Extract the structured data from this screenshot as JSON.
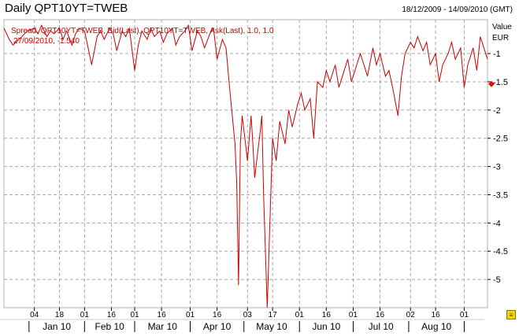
{
  "header": {
    "title": "Daily QPT10YT=TWEB",
    "date_range": "18/12/2009 - 14/09/2010 (GMT)"
  },
  "chart_data": {
    "type": "line",
    "legend": {
      "line1": "Spread, QPT10YT=TWEB, Bid(Last), QPT10YT=TWEB, Ask(Last),  1.0, 1.0",
      "line2": "27/09/2010, -1.540"
    },
    "y_axis": {
      "title": "Value",
      "unit": "EUR",
      "ticks": [
        -1,
        -1.5,
        -2,
        -2.5,
        -3,
        -3.5,
        -4,
        -4.5,
        -5
      ],
      "range": [
        -5.5,
        -0.4
      ],
      "side": "right"
    },
    "x_axis": {
      "day_ticks": [
        "04",
        "18",
        "01",
        "16",
        "01",
        "16",
        "01",
        "16",
        "03",
        "17",
        "01",
        "16",
        "01",
        "16",
        "02",
        "16",
        "01"
      ],
      "month_labels": [
        "Jan 10",
        "Feb 10",
        "Mar 10",
        "Apr 10",
        "May 10",
        "Jun 10",
        "Jul 10",
        "Aug 10"
      ]
    },
    "current_value_marker": -1.54,
    "line_color": "#cc0000",
    "grid": true,
    "series": [
      {
        "x": [
          "2009-12-18",
          "2009-12-21",
          "2009-12-23",
          "2009-12-28",
          "2009-12-31",
          "2010-01-04",
          "2010-01-06",
          "2010-01-08",
          "2010-01-11",
          "2010-01-13",
          "2010-01-15",
          "2010-01-18",
          "2010-01-20",
          "2010-01-22",
          "2010-01-25",
          "2010-01-27",
          "2010-01-29",
          "2010-02-01",
          "2010-02-03",
          "2010-02-05",
          "2010-02-08",
          "2010-02-10",
          "2010-02-12",
          "2010-02-15",
          "2010-02-17",
          "2010-02-19",
          "2010-02-22",
          "2010-02-24",
          "2010-02-26",
          "2010-03-01",
          "2010-03-03",
          "2010-03-05",
          "2010-03-08",
          "2010-03-10",
          "2010-03-12",
          "2010-03-15",
          "2010-03-17",
          "2010-03-19",
          "2010-03-22",
          "2010-03-24",
          "2010-03-26",
          "2010-03-29",
          "2010-03-31",
          "2010-04-02",
          "2010-04-05",
          "2010-04-07",
          "2010-04-09",
          "2010-04-12",
          "2010-04-14",
          "2010-04-16",
          "2010-04-19",
          "2010-04-21",
          "2010-04-23",
          "2010-04-26",
          "2010-04-27",
          "2010-04-28",
          "2010-04-29",
          "2010-04-30",
          "2010-05-03",
          "2010-05-04",
          "2010-05-05",
          "2010-05-06",
          "2010-05-07",
          "2010-05-10",
          "2010-05-11",
          "2010-05-12",
          "2010-05-14",
          "2010-05-17",
          "2010-05-19",
          "2010-05-21",
          "2010-05-24",
          "2010-05-26",
          "2010-05-28",
          "2010-05-31",
          "2010-06-02",
          "2010-06-04",
          "2010-06-07",
          "2010-06-09",
          "2010-06-11",
          "2010-06-14",
          "2010-06-16",
          "2010-06-18",
          "2010-06-21",
          "2010-06-23",
          "2010-06-25",
          "2010-06-28",
          "2010-06-30",
          "2010-07-02",
          "2010-07-05",
          "2010-07-07",
          "2010-07-09",
          "2010-07-12",
          "2010-07-14",
          "2010-07-16",
          "2010-07-19",
          "2010-07-21",
          "2010-07-23",
          "2010-07-26",
          "2010-07-28",
          "2010-07-30",
          "2010-08-02",
          "2010-08-04",
          "2010-08-06",
          "2010-08-09",
          "2010-08-11",
          "2010-08-13",
          "2010-08-16",
          "2010-08-18",
          "2010-08-20",
          "2010-08-23",
          "2010-08-25",
          "2010-08-27",
          "2010-08-30",
          "2010-09-01",
          "2010-09-03",
          "2010-09-06",
          "2010-09-08",
          "2010-09-10",
          "2010-09-14"
        ],
        "y": [
          -0.55,
          -0.75,
          -0.85,
          -0.7,
          -0.6,
          -0.55,
          -0.65,
          -0.5,
          -0.7,
          -0.6,
          -0.65,
          -0.55,
          -0.75,
          -0.6,
          -0.85,
          -0.65,
          -0.55,
          -0.6,
          -0.9,
          -1.2,
          -0.7,
          -0.6,
          -0.75,
          -0.55,
          -0.65,
          -0.95,
          -0.6,
          -0.7,
          -0.55,
          -1.3,
          -0.85,
          -0.6,
          -0.75,
          -0.55,
          -0.7,
          -0.6,
          -0.8,
          -0.65,
          -0.55,
          -0.85,
          -0.7,
          -0.6,
          -0.5,
          -0.95,
          -0.6,
          -0.7,
          -0.9,
          -0.65,
          -0.55,
          -1.1,
          -0.75,
          -0.9,
          -1.6,
          -2.6,
          -3.3,
          -5.1,
          -2.6,
          -2.1,
          -2.9,
          -2.5,
          -2.1,
          -2.6,
          -3.2,
          -2.4,
          -2.1,
          -3.5,
          -5.5,
          -2.5,
          -2.9,
          -2.2,
          -2.6,
          -2.0,
          -2.3,
          -1.9,
          -1.7,
          -2.0,
          -1.8,
          -2.5,
          -1.5,
          -1.6,
          -1.3,
          -1.5,
          -1.2,
          -1.6,
          -1.4,
          -1.1,
          -1.5,
          -1.3,
          -1.0,
          -1.2,
          -1.4,
          -0.9,
          -1.2,
          -1.0,
          -1.4,
          -1.3,
          -1.6,
          -2.1,
          -1.4,
          -1.0,
          -0.8,
          -0.9,
          -0.7,
          -0.95,
          -0.8,
          -1.2,
          -1.0,
          -1.5,
          -1.2,
          -1.0,
          -0.8,
          -1.1,
          -0.9,
          -1.6,
          -1.2,
          -0.9,
          -1.3,
          -0.7,
          -1.1
        ]
      }
    ]
  }
}
